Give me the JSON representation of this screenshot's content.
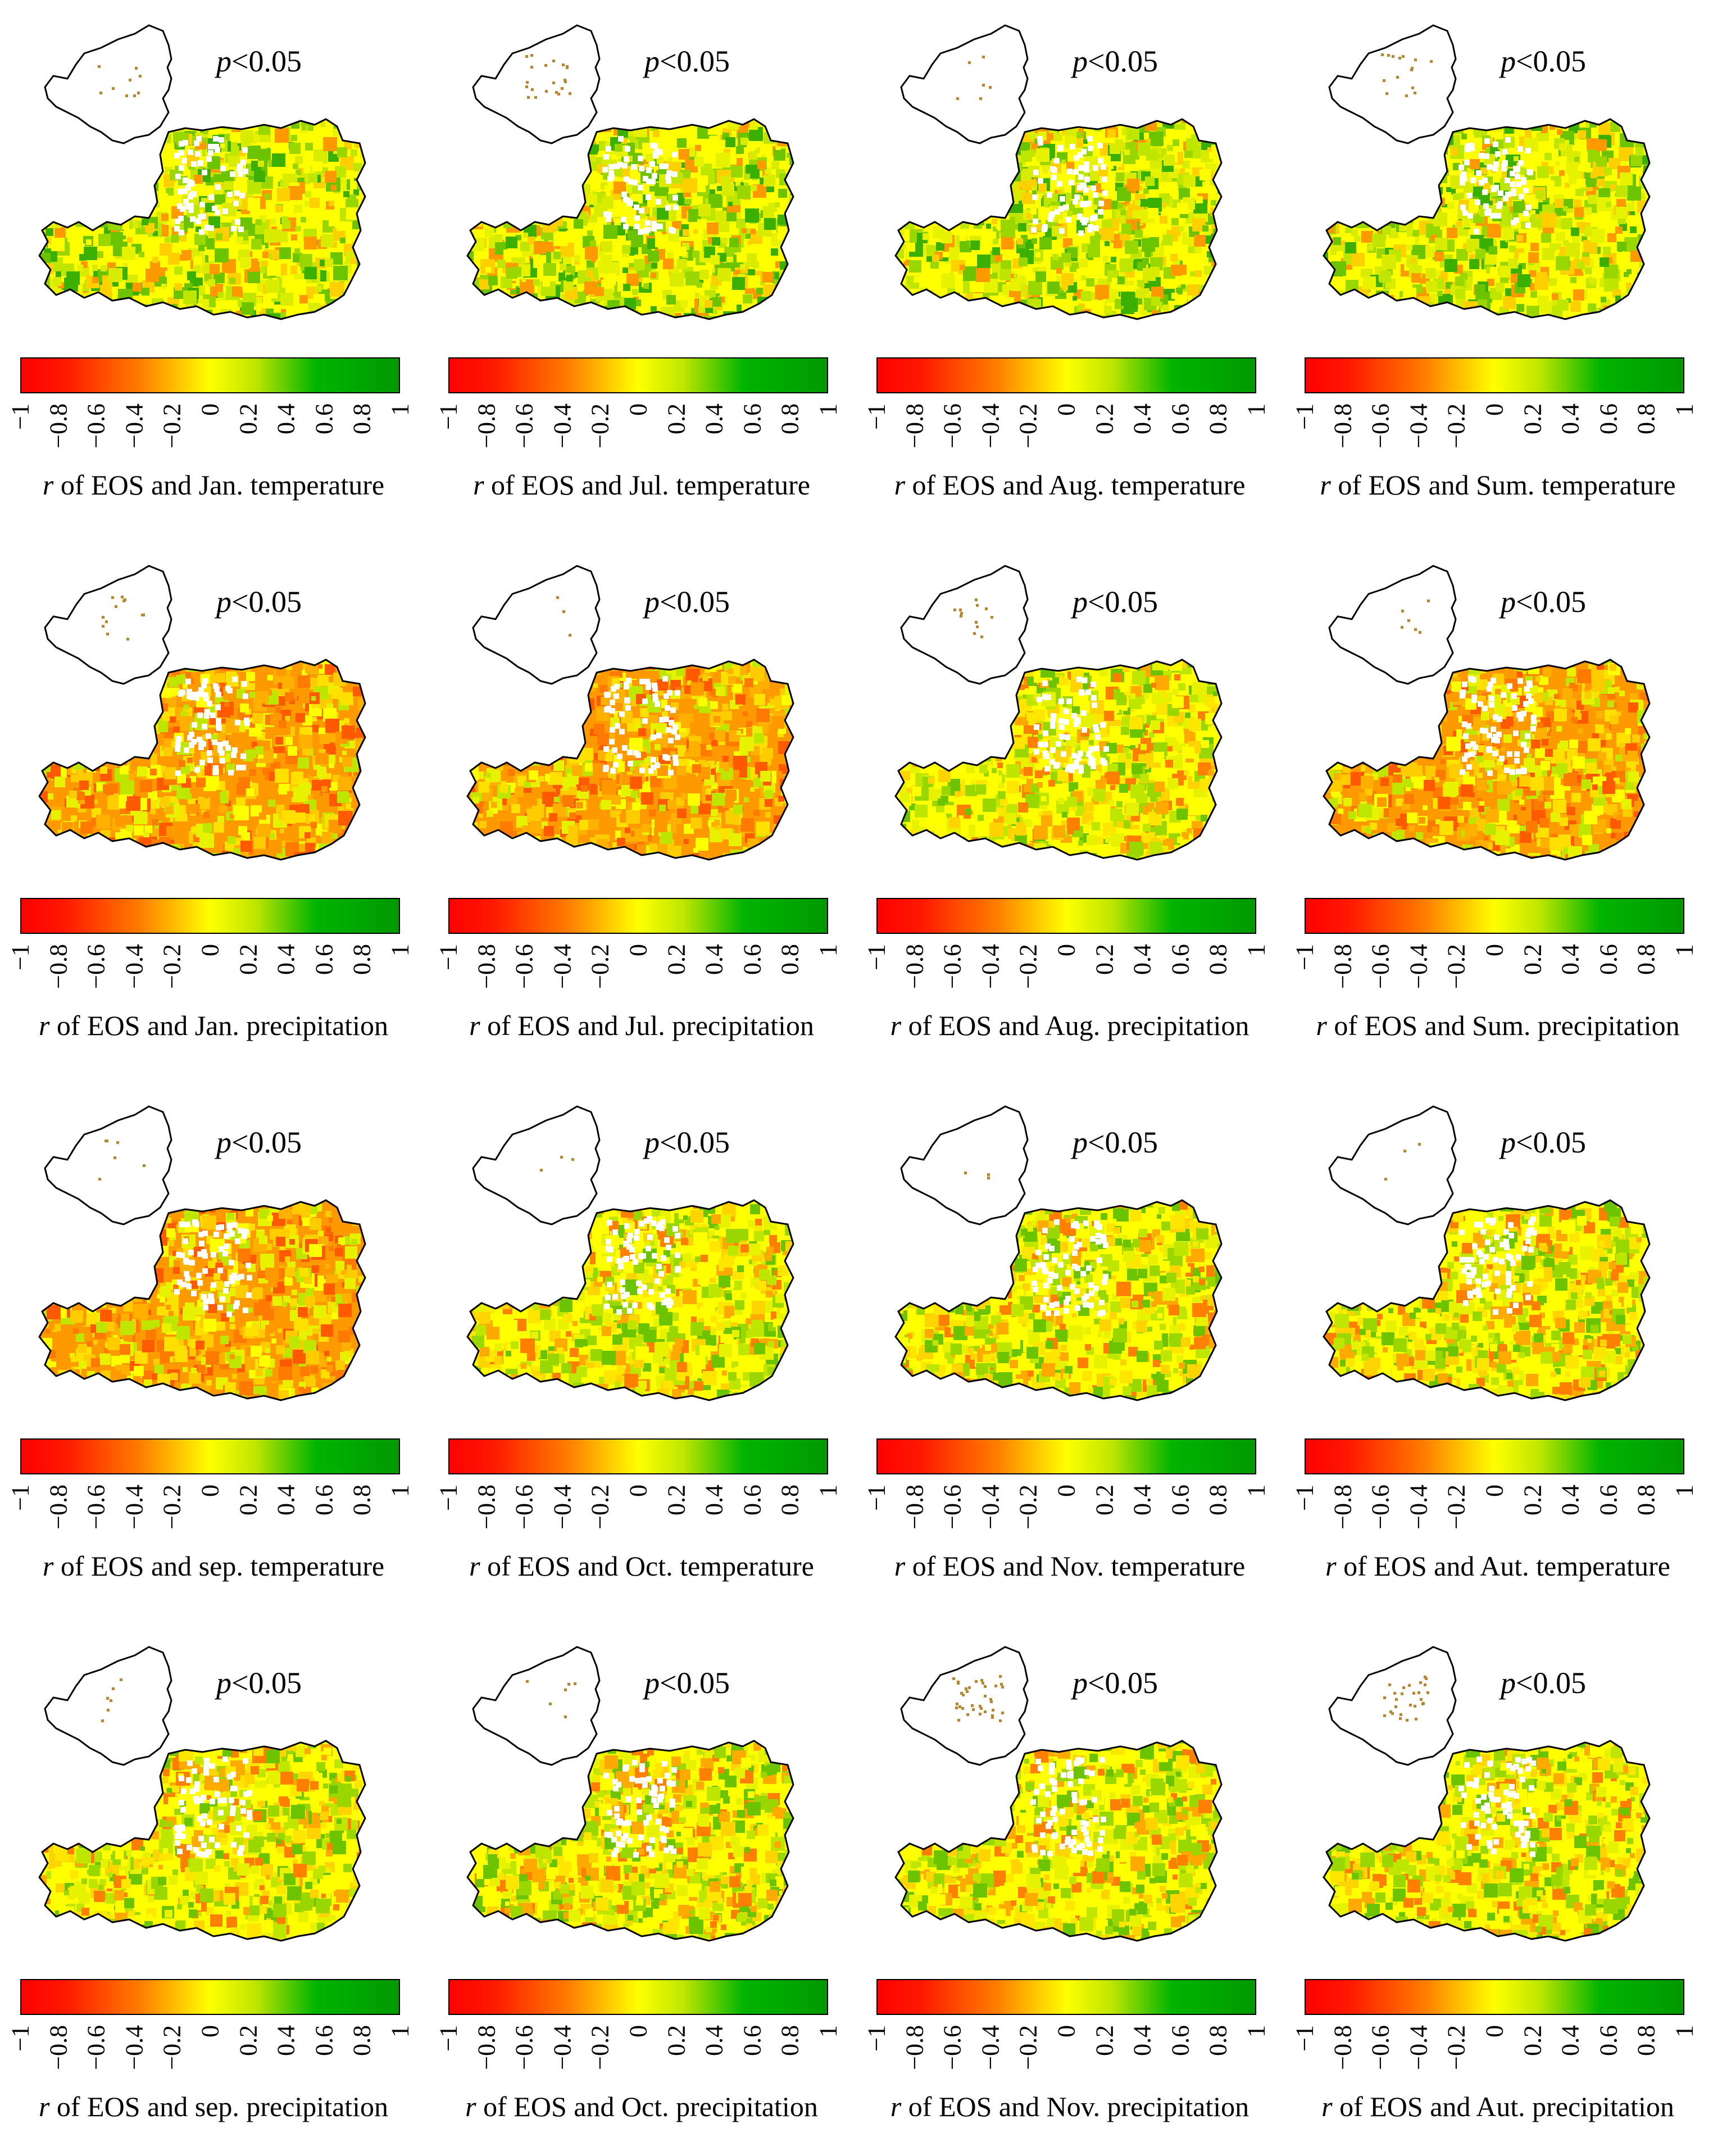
{
  "significance_label": "p<0.05",
  "significance_p": "p",
  "significance_rest": "<0.05",
  "colorbar": {
    "ticks": [
      "−1",
      "−0.8",
      "−0.6",
      "−0.4",
      "−0.2",
      "0",
      "0.2",
      "0.4",
      "0.6",
      "0.8",
      "1"
    ],
    "colors": [
      "#ff0000",
      "#ff8000",
      "#ffff00",
      "#00b400",
      "#009900"
    ]
  },
  "caption_r": "r",
  "panels": [
    {
      "caption": " of EOS and Jan. temperature",
      "tone": "green",
      "sig": 0.15
    },
    {
      "caption": " of EOS and Jul. temperature",
      "tone": "green",
      "sig": 0.35
    },
    {
      "caption": " of EOS and Aug. temperature",
      "tone": "green",
      "sig": 0.1
    },
    {
      "caption": " of EOS and Sum. temperature",
      "tone": "green",
      "sig": 0.25
    },
    {
      "caption": " of EOS and Jan. precipitation",
      "tone": "orange",
      "sig": 0.2
    },
    {
      "caption": " of EOS and Jul. precipitation",
      "tone": "orange",
      "sig": 0.05
    },
    {
      "caption": " of EOS and Aug. precipitation",
      "tone": "mixed",
      "sig": 0.2
    },
    {
      "caption": " of EOS and Sum. precipitation",
      "tone": "orange",
      "sig": 0.1
    },
    {
      "caption": " of EOS and sep. temperature",
      "tone": "orange",
      "sig": 0.1
    },
    {
      "caption": " of EOS and Oct. temperature",
      "tone": "mixed",
      "sig": 0.05
    },
    {
      "caption": " of EOS and Nov. temperature",
      "tone": "mixed",
      "sig": 0.05
    },
    {
      "caption": " of EOS and Aut. temperature",
      "tone": "mixed",
      "sig": 0.05
    },
    {
      "caption": " of EOS and sep. precipitation",
      "tone": "mixed",
      "sig": 0.1
    },
    {
      "caption": " of EOS and Oct. precipitation",
      "tone": "mixed",
      "sig": 0.1
    },
    {
      "caption": " of EOS and Nov. precipitation",
      "tone": "mixed",
      "sig": 0.6
    },
    {
      "caption": " of EOS and Aut. precipitation",
      "tone": "mixed",
      "sig": 0.45
    }
  ]
}
